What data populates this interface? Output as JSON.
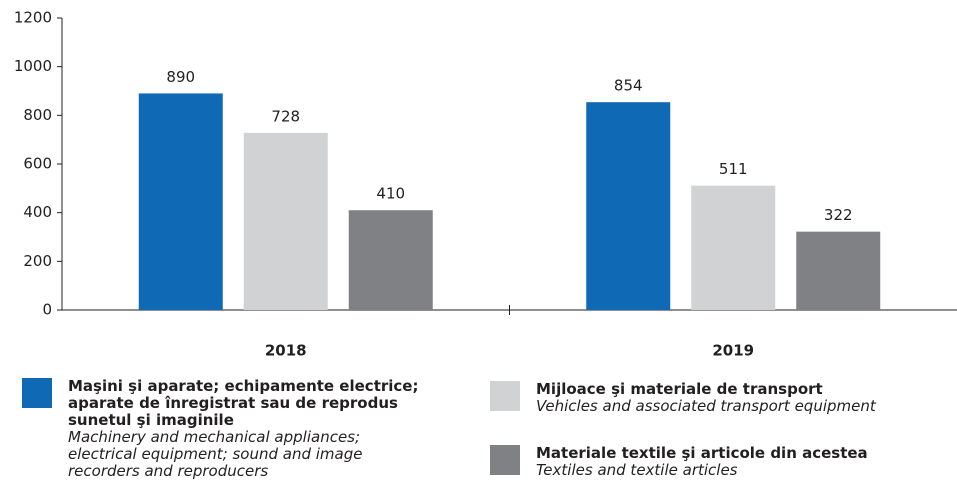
{
  "chart_data": {
    "type": "bar",
    "categories": [
      "2018",
      "2019"
    ],
    "series": [
      {
        "name": "Maşini şi aparate; echipamente electrice; aparate de înregistrat sau de reprodus sunetul şi imaginile",
        "subtitle": "Machinery and mechanical appliances; electrical equipment; sound and image recorders and reproducers",
        "color": "#0f69b4",
        "values": [
          890,
          854
        ]
      },
      {
        "name": "Mijloace şi materiale de transport",
        "subtitle": "Vehicles and associated transport equipment",
        "color": "#d1d2d4",
        "values": [
          728,
          511
        ]
      },
      {
        "name": "Materiale textile şi articole din acestea",
        "subtitle": "Textiles and textile articles",
        "color": "#808185",
        "values": [
          410,
          322
        ]
      }
    ],
    "ylim": [
      0,
      1200
    ],
    "yticks": [
      0,
      200,
      400,
      600,
      800,
      1000,
      1200
    ],
    "grid": false
  }
}
